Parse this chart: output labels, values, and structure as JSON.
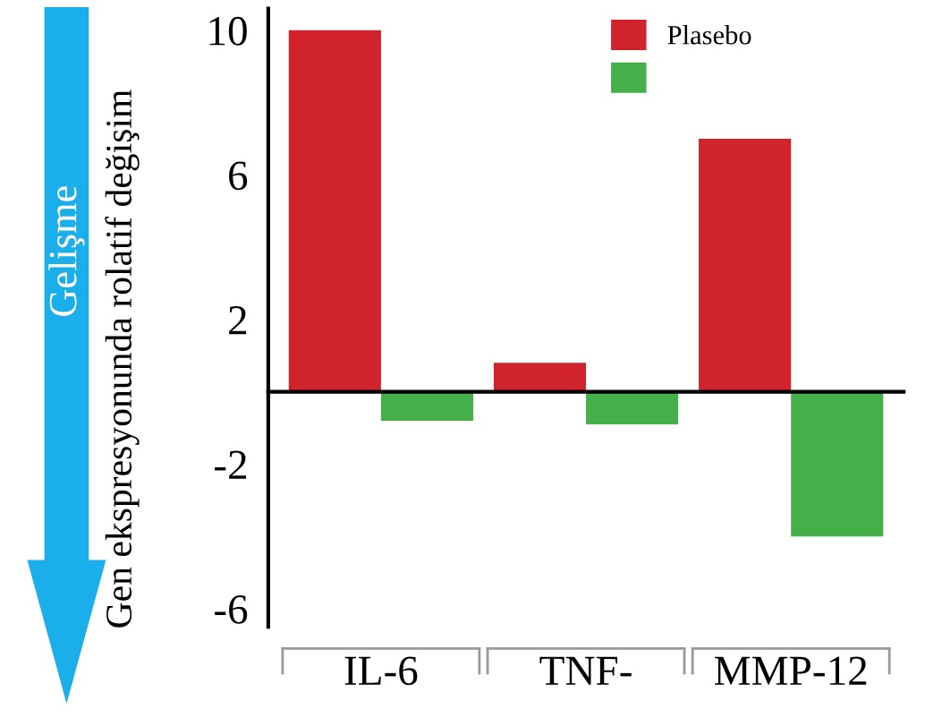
{
  "chart_data": {
    "type": "bar",
    "ylabel": "Gen ekspresyonunda rolatif değişim",
    "categories": [
      "IL-6",
      "TNF-",
      "MMP-12"
    ],
    "series": [
      {
        "name": "Plasebo",
        "color": "#d0232b",
        "values": [
          10,
          0.8,
          7
        ]
      },
      {
        "color": "#45b04a",
        "values": [
          -0.8,
          -0.9,
          -4
        ]
      }
    ],
    "ylim": [
      -6.5,
      10.6
    ],
    "yticks": [
      10,
      6,
      2,
      -2,
      -6
    ],
    "legend": "top right",
    "grid": false,
    "annotations": [
      "Gelişme"
    ]
  }
}
